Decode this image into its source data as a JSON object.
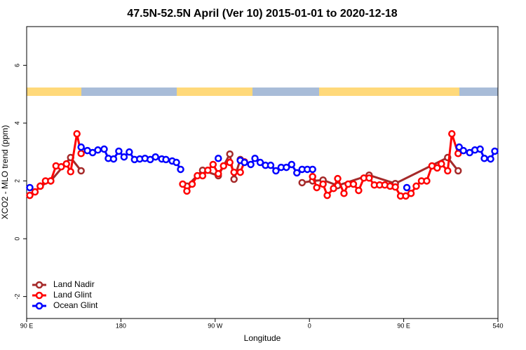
{
  "chart_data": {
    "type": "line",
    "title": "47.5N-52.5N April (Ver 10)   2015-01-01 to 2020-12-18",
    "xlabel": "Longitude",
    "ylabel": "XCO2 - MLO trend (ppm)",
    "xlim": [
      90,
      540
    ],
    "ylim": [
      -2.76,
      7.34
    ],
    "xticks": [
      {
        "value": 90,
        "label": "90 E"
      },
      180,
      {
        "value": 270,
        "label": "90 W"
      },
      {
        "value": 360,
        "label": "0"
      },
      {
        "value": 450,
        "label": "90 E"
      },
      540
    ],
    "yticks": [
      -2,
      0,
      2,
      4,
      6
    ],
    "legend": "bottomleft",
    "series": [
      {
        "name": "Land Nadir",
        "color": "#a52a2a",
        "x": [
          103,
          113,
          132,
          142,
          null,
          243,
          258,
          273,
          284,
          288,
          294,
          null,
          353,
          363,
          373,
          387,
          417,
          442,
          492,
          502
        ],
        "values": [
          1.82,
          2.0,
          2.81,
          2.35,
          null,
          1.82,
          2.37,
          2.18,
          2.93,
          2.06,
          2.74,
          null,
          1.94,
          2.0,
          2.03,
          1.84,
          2.2,
          1.91,
          2.81,
          2.35
        ]
      },
      {
        "name": "Land Glint",
        "color": "#ff0000",
        "x": [
          93,
          98,
          103,
          108,
          113,
          118,
          123,
          128,
          132,
          138,
          142,
          null,
          239,
          243,
          248,
          253,
          258,
          263,
          268,
          273,
          278,
          284,
          288,
          294,
          298,
          null,
          363,
          367,
          373,
          377,
          383,
          387,
          393,
          397,
          402,
          407,
          412,
          417,
          422,
          427,
          432,
          437,
          442,
          447,
          452,
          457,
          462,
          467,
          472,
          477,
          482,
          486,
          492,
          496,
          502
        ],
        "values": [
          1.5,
          1.62,
          1.82,
          2.0,
          2.0,
          2.52,
          2.49,
          2.59,
          2.32,
          3.63,
          2.95,
          null,
          1.89,
          1.65,
          1.89,
          2.18,
          2.18,
          2.37,
          2.57,
          2.25,
          2.52,
          2.64,
          2.3,
          2.3,
          2.66,
          null,
          2.15,
          1.77,
          1.89,
          1.5,
          1.74,
          2.08,
          1.57,
          1.89,
          1.89,
          1.67,
          2.1,
          2.1,
          1.86,
          1.86,
          1.86,
          1.82,
          1.79,
          1.48,
          1.48,
          1.57,
          1.82,
          2.0,
          2.0,
          2.52,
          2.45,
          2.59,
          2.35,
          3.63,
          2.95
        ]
      },
      {
        "name": "Ocean Glint",
        "color": "#0000ff",
        "x": [
          93,
          null,
          142,
          148,
          153,
          158,
          164,
          168,
          173,
          178,
          183,
          188,
          193,
          198,
          203,
          208,
          213,
          219,
          223,
          229,
          233,
          237,
          null,
          273,
          null,
          294,
          298,
          304,
          308,
          313,
          318,
          323,
          328,
          333,
          338,
          343,
          348,
          353,
          358,
          363,
          null,
          453,
          null,
          503,
          507,
          513,
          518,
          523,
          527,
          533,
          537
        ],
        "values": [
          1.77,
          null,
          3.17,
          3.05,
          2.98,
          3.07,
          3.1,
          2.78,
          2.76,
          3.03,
          2.83,
          3.0,
          2.74,
          2.76,
          2.78,
          2.74,
          2.83,
          2.76,
          2.74,
          2.69,
          2.64,
          2.4,
          null,
          2.78,
          null,
          2.71,
          2.64,
          2.57,
          2.78,
          2.64,
          2.54,
          2.54,
          2.35,
          2.47,
          2.47,
          2.57,
          2.28,
          2.4,
          2.4,
          2.4,
          null,
          1.77,
          null,
          3.17,
          3.05,
          2.98,
          3.07,
          3.1,
          2.78,
          2.76,
          3.03
        ]
      }
    ]
  }
}
